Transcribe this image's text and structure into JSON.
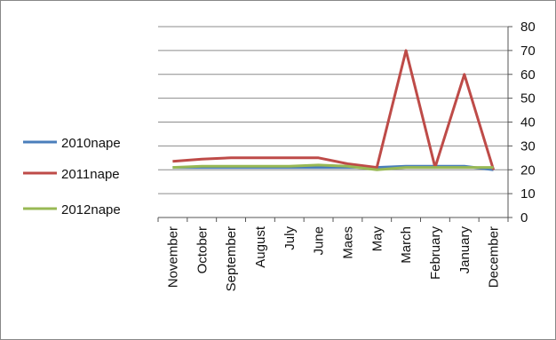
{
  "chart_data": {
    "type": "line",
    "categories": [
      "November",
      "October",
      "September",
      "August",
      "July",
      "June",
      "Maes",
      "May",
      "March",
      "February",
      "January",
      "December"
    ],
    "series": [
      {
        "name": "2010nape",
        "color": "#4a7ebb",
        "values": [
          21,
          21,
          21,
          21,
          21,
          21,
          21,
          21,
          21.5,
          21.5,
          21.5,
          20
        ]
      },
      {
        "name": "2011nape",
        "color": "#be4b48",
        "values": [
          23.5,
          24.5,
          25,
          25,
          25,
          25,
          22.5,
          21,
          70,
          21,
          60,
          20
        ]
      },
      {
        "name": "2012nape",
        "color": "#98b954",
        "values": [
          21,
          21.5,
          21.5,
          21.5,
          21.5,
          22,
          21.5,
          20,
          21,
          21,
          21,
          21
        ]
      }
    ],
    "ylim": [
      0,
      80
    ],
    "yticks": [
      0,
      10,
      20,
      30,
      40,
      50,
      60,
      70,
      80
    ],
    "y_axis_side": "right",
    "grid": true,
    "legend_position": "left"
  }
}
